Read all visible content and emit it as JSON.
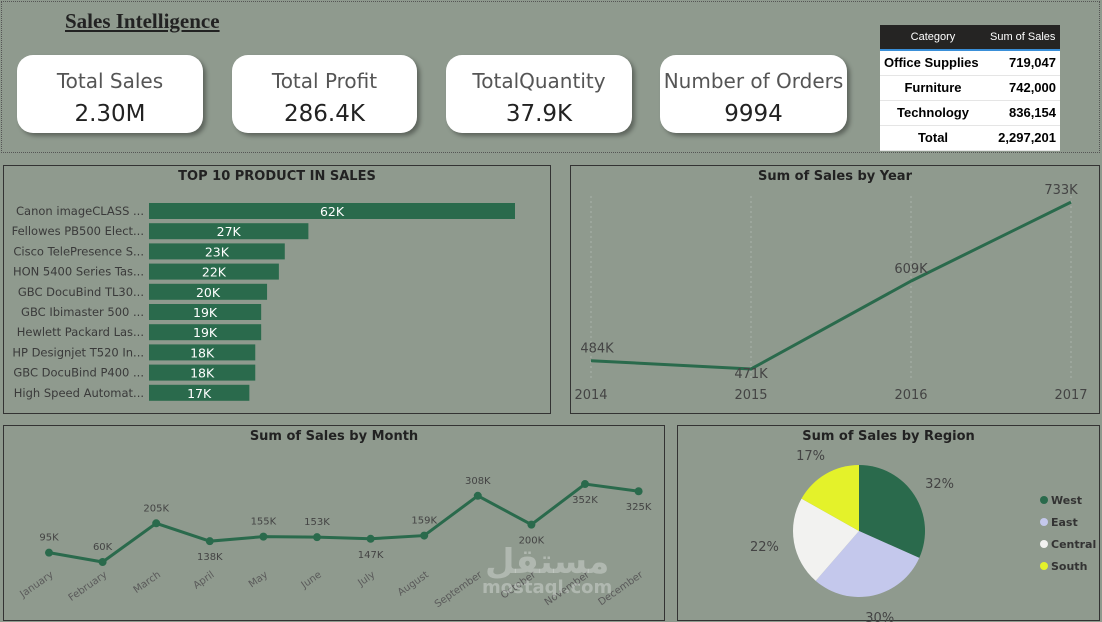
{
  "title": "Sales Intelligence",
  "kpis": [
    {
      "label": "Total Sales",
      "value": "2.30M"
    },
    {
      "label": "Total Profit",
      "value": "286.4K"
    },
    {
      "label": "TotalQuantity",
      "value": "37.9K"
    },
    {
      "label": "Number of Orders",
      "value": "9994"
    }
  ],
  "table": {
    "headers": [
      "Category",
      "Sum of Sales"
    ],
    "rows": [
      [
        "Office Supplies",
        "719,047"
      ],
      [
        "Furniture",
        "742,000"
      ],
      [
        "Technology",
        "836,154"
      ]
    ],
    "total": [
      "Total",
      "2,297,201"
    ]
  },
  "accent": "#2a6a4c",
  "chart_data": [
    {
      "type": "bar",
      "title": "TOP 10 PRODUCT IN SALES",
      "categories": [
        "Canon imageCLASS ...",
        "Fellowes PB500 Elect...",
        "Cisco TelePresence S...",
        "HON 5400 Series Tas...",
        "GBC DocuBind TL30...",
        "GBC Ibimaster 500 ...",
        "Hewlett Packard Las...",
        "HP Designjet T520 In...",
        "GBC DocuBind P400 ...",
        "High Speed Automat..."
      ],
      "values": [
        62,
        27,
        23,
        22,
        20,
        19,
        19,
        18,
        18,
        17
      ],
      "labels": [
        "62K",
        "27K",
        "23K",
        "22K",
        "20K",
        "19K",
        "19K",
        "18K",
        "18K",
        "17K"
      ]
    },
    {
      "type": "line",
      "title": "Sum of Sales by Year",
      "x": [
        "2014",
        "2015",
        "2016",
        "2017"
      ],
      "values": [
        484,
        471,
        609,
        733
      ],
      "labels": [
        "484K",
        "471K",
        "609K",
        "733K"
      ]
    },
    {
      "type": "line",
      "title": "Sum of Sales by Month",
      "x": [
        "January",
        "February",
        "March",
        "April",
        "May",
        "June",
        "July",
        "August",
        "September",
        "October",
        "November",
        "December"
      ],
      "values": [
        95,
        60,
        205,
        138,
        155,
        153,
        147,
        159,
        308,
        200,
        352,
        325
      ],
      "labels": [
        "95K",
        "60K",
        "205K",
        "138K",
        "155K",
        "153K",
        "147K",
        "159K",
        "308K",
        "200K",
        "352K",
        "325K"
      ]
    },
    {
      "type": "pie",
      "title": "Sum of Sales by Region",
      "categories": [
        "West",
        "East",
        "Central",
        "South"
      ],
      "values": [
        32,
        30,
        22,
        17
      ],
      "labels": [
        "32%",
        "30%",
        "22%",
        "17%"
      ],
      "colors": [
        "#2a6a4c",
        "#c4c8ec",
        "#f2f2f0",
        "#e4f22a"
      ],
      "legend": "right"
    }
  ],
  "watermark": {
    "arabic": "مستقل",
    "latin": "mostaql.com"
  }
}
